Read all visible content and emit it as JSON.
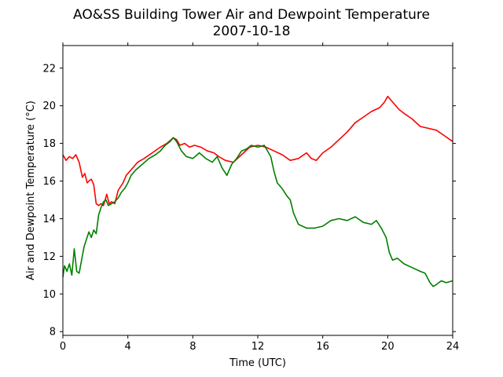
{
  "chart_data": {
    "type": "line",
    "title": "AO&SS Building Tower Air and Dewpoint Temperature",
    "subtitle": "2007-10-18",
    "xlabel": "Time (UTC)",
    "ylabel": "Air and Dewpoint Temperature (°C)",
    "xlim": [
      0,
      24
    ],
    "ylim": [
      7.8,
      23.2
    ],
    "xticks": [
      0,
      4,
      8,
      12,
      16,
      20,
      24
    ],
    "yticks": [
      8,
      10,
      12,
      14,
      16,
      18,
      20,
      22
    ],
    "grid": false,
    "legend": "none",
    "series": [
      {
        "color": "#ff0000",
        "x": [
          0,
          0.2,
          0.4,
          0.6,
          0.8,
          1.0,
          1.2,
          1.35,
          1.5,
          1.6,
          1.75,
          1.9,
          2.05,
          2.2,
          2.35,
          2.5,
          2.7,
          2.85,
          3.0,
          3.2,
          3.4,
          3.55,
          3.7,
          3.9,
          4.2,
          4.6,
          5.0,
          5.5,
          6.0,
          6.4,
          6.8,
          7.0,
          7.2,
          7.5,
          7.8,
          8.1,
          8.5,
          8.9,
          9.3,
          9.6,
          10.0,
          10.5,
          11.0,
          11.5,
          12.0,
          12.5,
          13.0,
          13.5,
          14.0,
          14.5,
          15.0,
          15.3,
          15.6,
          16.0,
          16.5,
          17.0,
          17.5,
          18.0,
          18.5,
          19.0,
          19.5,
          19.8,
          20.0,
          20.3,
          20.7,
          21.0,
          21.5,
          22.0,
          22.5,
          23.0,
          23.5,
          24.0
        ],
        "y": [
          17.4,
          17.1,
          17.3,
          17.2,
          17.4,
          17.0,
          16.2,
          16.4,
          15.9,
          16.0,
          16.1,
          15.8,
          14.8,
          14.7,
          14.8,
          14.7,
          15.3,
          14.8,
          14.9,
          14.8,
          15.5,
          15.7,
          15.9,
          16.3,
          16.6,
          17.0,
          17.2,
          17.5,
          17.8,
          18.0,
          18.3,
          18.2,
          17.9,
          18.0,
          17.8,
          17.9,
          17.8,
          17.6,
          17.5,
          17.3,
          17.1,
          17.0,
          17.4,
          17.8,
          17.9,
          17.8,
          17.6,
          17.4,
          17.1,
          17.2,
          17.5,
          17.2,
          17.1,
          17.5,
          17.8,
          18.2,
          18.6,
          19.1,
          19.4,
          19.7,
          19.9,
          20.2,
          20.5,
          20.2,
          19.8,
          19.6,
          19.3,
          18.9,
          18.8,
          18.7,
          18.4,
          18.1
        ]
      },
      {
        "color": "#008000",
        "x": [
          0,
          0.1,
          0.25,
          0.4,
          0.55,
          0.7,
          0.85,
          1.0,
          1.15,
          1.3,
          1.45,
          1.6,
          1.75,
          1.9,
          2.05,
          2.2,
          2.35,
          2.5,
          2.65,
          2.8,
          3.0,
          3.2,
          3.4,
          3.6,
          3.8,
          4.0,
          4.2,
          4.5,
          4.9,
          5.3,
          5.7,
          6.0,
          6.3,
          6.6,
          6.8,
          7.0,
          7.3,
          7.6,
          8.0,
          8.4,
          8.8,
          9.2,
          9.5,
          9.8,
          10.1,
          10.4,
          10.7,
          11.0,
          11.3,
          11.6,
          12.0,
          12.4,
          12.8,
          13.0,
          13.2,
          13.5,
          13.8,
          14.0,
          14.2,
          14.5,
          15.0,
          15.5,
          16.0,
          16.5,
          17.0,
          17.5,
          18.0,
          18.5,
          19.0,
          19.3,
          19.6,
          19.9,
          20.1,
          20.3,
          20.6,
          21.0,
          21.5,
          22.0,
          22.3,
          22.6,
          22.8,
          23.0,
          23.3,
          23.6,
          24.0
        ],
        "y": [
          10.9,
          11.5,
          11.2,
          11.6,
          11.0,
          12.4,
          11.2,
          11.1,
          11.8,
          12.5,
          12.9,
          13.3,
          13.0,
          13.4,
          13.2,
          14.2,
          14.6,
          14.9,
          15.0,
          14.7,
          14.8,
          14.9,
          15.1,
          15.4,
          15.6,
          15.9,
          16.3,
          16.6,
          16.9,
          17.2,
          17.4,
          17.6,
          17.9,
          18.1,
          18.3,
          18.1,
          17.6,
          17.3,
          17.2,
          17.5,
          17.2,
          17.0,
          17.3,
          16.7,
          16.3,
          16.9,
          17.2,
          17.6,
          17.7,
          17.9,
          17.8,
          17.9,
          17.3,
          16.5,
          15.9,
          15.6,
          15.2,
          15.0,
          14.3,
          13.7,
          13.5,
          13.5,
          13.6,
          13.9,
          14.0,
          13.9,
          14.1,
          13.8,
          13.7,
          13.9,
          13.5,
          13.0,
          12.2,
          11.8,
          11.9,
          11.6,
          11.4,
          11.2,
          11.1,
          10.6,
          10.4,
          10.5,
          10.7,
          10.6,
          10.7
        ]
      }
    ]
  }
}
